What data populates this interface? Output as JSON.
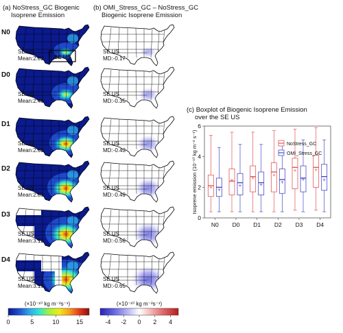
{
  "panel_a": {
    "title_line1": "(a) NoStress_GC Biogenic",
    "title_line2": "Isoprene Emission",
    "region_box_label": "SE US",
    "region_prefix": "SE US",
    "colorbar_unit": "(×10⁻¹⁰ kg m⁻²s⁻¹)",
    "colorbar_ticks": [
      "0",
      "5",
      "10",
      "15"
    ],
    "colorbar_min": 0,
    "colorbar_max": 17,
    "colors": [
      "#0b1a8c",
      "#1f4fd1",
      "#2fa6e8",
      "#2ee6d6",
      "#9ff23a",
      "#f3ea1a",
      "#f7a21a",
      "#e6381a",
      "#8c0d0d"
    ]
  },
  "panel_b": {
    "title_line1": "(b) OMI_Stress_GC – NoStress_GC",
    "title_line2": "Biogenic Isoprene Emission",
    "region_prefix": "SE US",
    "colorbar_unit": "(×10⁻¹⁰ kg m⁻²s⁻¹)",
    "colorbar_ticks": [
      "-4",
      "-2",
      "0",
      "2",
      "4"
    ],
    "colorbar_min": -5,
    "colorbar_max": 5,
    "colors": [
      "#2323b8",
      "#6f6fe6",
      "#b9b9f6",
      "#ffffff",
      "#f4b9b9",
      "#e36a6a",
      "#b81c1c"
    ]
  },
  "rows": [
    {
      "label": "N0",
      "mean": "Mean:2.02",
      "md": "MD:-0.17"
    },
    {
      "label": "D0",
      "mean": "Mean:2.48",
      "md": "MD:-0.35"
    },
    {
      "label": "D1",
      "mean": "Mean:2.62",
      "md": "MD:-0.43"
    },
    {
      "label": "D2",
      "mean": "Mean:2.83",
      "md": "MD:-0.49"
    },
    {
      "label": "D3",
      "mean": "Mean:3.12",
      "md": "MD:-0.58"
    },
    {
      "label": "D4",
      "mean": "Mean:3.15",
      "md": "MD:-0.65"
    }
  ],
  "panel_c": {
    "title_line1": "(c) Boxplot of Biogenic Isoprene Emission",
    "title_line2": "over the SE US"
  },
  "chart_data": {
    "type": "box",
    "title": "(c) Boxplot of Biogenic Isoprene Emission over the SE US",
    "xlabel": "",
    "ylabel": "Isoprene emission (10⁻¹⁰ kg m⁻² s⁻¹)",
    "categories": [
      "N0",
      "D0",
      "D1",
      "D2",
      "D3",
      "D4"
    ],
    "ylim": [
      0,
      6
    ],
    "yticks": [
      0,
      2,
      4,
      6
    ],
    "legend_position": "top-right",
    "series": [
      {
        "name": "NoStress_GC",
        "color": "#e05555",
        "boxes": [
          {
            "whisker_low": 0.4,
            "q1": 1.4,
            "median": 2.1,
            "mean": 2.02,
            "q3": 2.8,
            "whisker_high": 5.4
          },
          {
            "whisker_low": 0.4,
            "q1": 1.5,
            "median": 2.4,
            "mean": 2.48,
            "q3": 3.2,
            "whisker_high": 5.6
          },
          {
            "whisker_low": 0.4,
            "q1": 1.7,
            "median": 2.7,
            "mean": 2.62,
            "q3": 3.4,
            "whisker_high": 5.6
          },
          {
            "whisker_low": 0.4,
            "q1": 1.7,
            "median": 3.0,
            "mean": 2.83,
            "q3": 3.6,
            "whisker_high": 5.7
          },
          {
            "whisker_low": 0.5,
            "q1": 1.9,
            "median": 3.3,
            "mean": 3.12,
            "q3": 3.9,
            "whisker_high": 5.8
          },
          {
            "whisker_low": 0.5,
            "q1": 2.0,
            "median": 3.3,
            "mean": 3.15,
            "q3": 4.1,
            "whisker_high": 5.9
          }
        ]
      },
      {
        "name": "OMI_Stress_GC",
        "color": "#4848c8",
        "boxes": [
          {
            "whisker_low": 0.4,
            "q1": 1.4,
            "median": 2.0,
            "mean": 1.85,
            "q3": 2.6,
            "whisker_high": 4.6
          },
          {
            "whisker_low": 0.4,
            "q1": 1.5,
            "median": 2.3,
            "mean": 2.13,
            "q3": 2.9,
            "whisker_high": 4.8
          },
          {
            "whisker_low": 0.4,
            "q1": 1.5,
            "median": 2.3,
            "mean": 2.19,
            "q3": 3.0,
            "whisker_high": 4.8
          },
          {
            "whisker_low": 0.4,
            "q1": 1.6,
            "median": 2.5,
            "mean": 2.34,
            "q3": 3.2,
            "whisker_high": 4.9
          },
          {
            "whisker_low": 0.4,
            "q1": 1.7,
            "median": 2.6,
            "mean": 2.54,
            "q3": 3.4,
            "whisker_high": 5.1
          },
          {
            "whisker_low": 0.4,
            "q1": 1.8,
            "median": 2.7,
            "mean": 2.5,
            "q3": 3.5,
            "whisker_high": 5.1
          }
        ]
      }
    ]
  }
}
